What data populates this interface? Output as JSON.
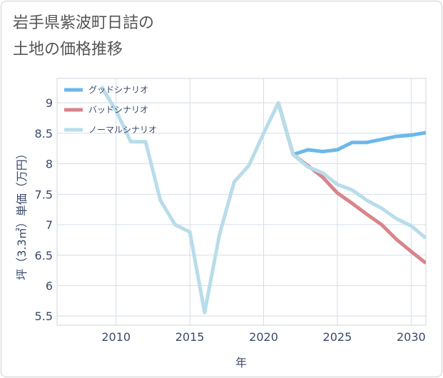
{
  "chart_data": {
    "type": "line",
    "title": "岩手県紫波町日詰の\n土地の価格推移",
    "xlabel": "年",
    "ylabel": "坪（3.3㎡）単価（万円）",
    "xlim": [
      2006,
      2031
    ],
    "ylim": [
      5.35,
      9.4
    ],
    "x_ticks": [
      2010,
      2015,
      2020,
      2025,
      2030
    ],
    "y_ticks": [
      5.5,
      6,
      6.5,
      7,
      7.5,
      8,
      8.5,
      9
    ],
    "grid": true,
    "legend_position": "top-left",
    "series": [
      {
        "name": "グッドシナリオ",
        "color": "#6cb8ea",
        "x": [
          2021,
          2022,
          2023,
          2024,
          2025,
          2026,
          2027,
          2028,
          2029,
          2030,
          2031
        ],
        "values": [
          9.0,
          8.15,
          8.23,
          8.2,
          8.23,
          8.35,
          8.35,
          8.4,
          8.45,
          8.47,
          8.51
        ]
      },
      {
        "name": "バッドシナリオ",
        "color": "#d9848a",
        "x": [
          2021,
          2022,
          2023,
          2024,
          2025,
          2026,
          2027,
          2028,
          2029,
          2030,
          2031
        ],
        "values": [
          9.0,
          8.15,
          7.97,
          7.78,
          7.52,
          7.35,
          7.17,
          7.0,
          6.76,
          6.56,
          6.37
        ]
      },
      {
        "name": "ノーマルシナリオ",
        "color": "#b8dcea",
        "x": [
          2009,
          2010,
          2011,
          2012,
          2013,
          2014,
          2015,
          2016,
          2017,
          2018,
          2019,
          2020,
          2021,
          2022,
          2023,
          2024,
          2025,
          2026,
          2027,
          2028,
          2029,
          2030,
          2031
        ],
        "values": [
          9.27,
          8.87,
          8.36,
          8.36,
          7.4,
          7.0,
          6.88,
          5.56,
          6.83,
          7.7,
          7.97,
          8.5,
          9.0,
          8.15,
          7.95,
          7.85,
          7.66,
          7.57,
          7.4,
          7.27,
          7.1,
          6.98,
          6.78
        ]
      }
    ]
  }
}
